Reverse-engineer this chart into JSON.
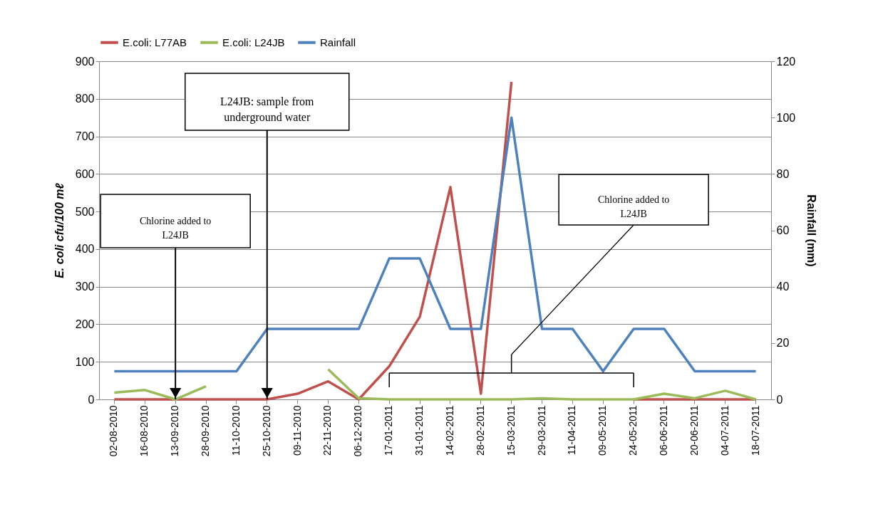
{
  "chart_data": {
    "type": "line",
    "categories": [
      "02-08-2010",
      "16-08-2010",
      "13-09-2010",
      "28-09-2010",
      "11-10-2010",
      "25-10-2010",
      "09-11-2010",
      "22-11-2010",
      "06-12-2010",
      "17-01-2011",
      "31-01-2011",
      "14-02-2011",
      "28-02-2011",
      "15-03-2011",
      "29-03-2011",
      "11-04-2011",
      "09-05-2011",
      "24-05-2011",
      "06-06-2011",
      "20-06-2011",
      "04-07-2011",
      "18-07-2011"
    ],
    "series": [
      {
        "name": "E.coli: L77AB",
        "color": "#c0504d",
        "values": [
          0,
          0,
          0,
          0,
          0,
          0,
          15,
          48,
          0,
          88,
          220,
          565,
          15,
          845,
          null,
          null,
          null,
          0,
          0,
          0,
          0,
          0
        ]
      },
      {
        "name": "E.coli: L24JB",
        "color": "#9bbb59",
        "values": [
          18,
          25,
          0,
          35,
          null,
          null,
          null,
          80,
          3,
          0,
          0,
          0,
          0,
          0,
          3,
          0,
          0,
          0,
          15,
          3,
          23,
          0
        ]
      },
      {
        "name": "Rainfall",
        "color": "#4f81bd",
        "axis": "y2",
        "values": [
          10,
          10,
          10,
          10,
          10,
          25,
          25,
          25,
          25,
          50,
          50,
          25,
          25,
          100,
          25,
          25,
          10,
          25,
          25,
          10,
          10,
          10
        ]
      }
    ],
    "ylabel": "E. coli cfu/100 mℓ",
    "y2label": "Rainfall (mm)",
    "ylim": [
      0,
      900
    ],
    "yticks": [
      0,
      100,
      200,
      300,
      400,
      500,
      600,
      700,
      800,
      900
    ],
    "y2lim": [
      0,
      120
    ],
    "y2ticks": [
      0,
      20,
      40,
      60,
      80,
      100,
      120
    ],
    "grid": "y",
    "legend": "top",
    "line_style": "solid",
    "marker": "none",
    "annotations": [
      {
        "text": "Chlorine added to\nL24JB",
        "x": "13-09-2010",
        "y": 0
      },
      {
        "text": "L24JB: sample from\nunderground water",
        "x": "25-10-2010",
        "y": 0
      },
      "Chlorine added to\nL24JB"
    ]
  }
}
